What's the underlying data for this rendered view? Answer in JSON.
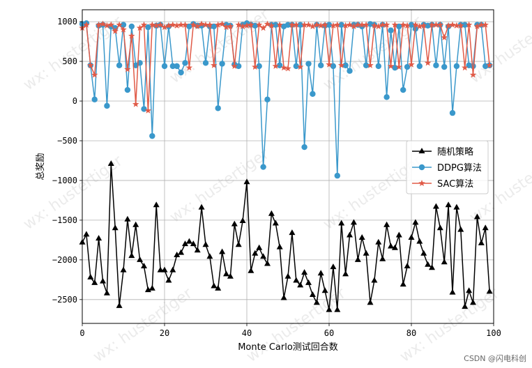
{
  "chart_data": {
    "type": "line",
    "title": "",
    "xlabel": "Monte Carlo测试回合数",
    "ylabel": "总奖励",
    "xlim": [
      0,
      100
    ],
    "ylim": [
      -2800,
      1150
    ],
    "xticks": [
      0,
      20,
      40,
      60,
      80,
      100
    ],
    "yticks": [
      1000,
      500,
      0,
      -500,
      -1000,
      -1500,
      -2000,
      -2500
    ],
    "grid": true,
    "legend_position": "center-right",
    "series": [
      {
        "name": "随机策略",
        "color": "#000000",
        "marker": "triangle",
        "x": [
          0,
          1,
          2,
          3,
          4,
          5,
          6,
          7,
          8,
          9,
          10,
          11,
          12,
          13,
          14,
          15,
          16,
          17,
          18,
          19,
          20,
          21,
          22,
          23,
          24,
          25,
          26,
          27,
          28,
          29,
          30,
          31,
          32,
          33,
          34,
          35,
          36,
          37,
          38,
          39,
          40,
          41,
          42,
          43,
          44,
          45,
          46,
          47,
          48,
          49,
          50,
          51,
          52,
          53,
          54,
          55,
          56,
          57,
          58,
          59,
          60,
          61,
          62,
          63,
          64,
          65,
          66,
          67,
          68,
          69,
          70,
          71,
          72,
          73,
          74,
          75,
          76,
          77,
          78,
          79,
          80,
          81,
          82,
          83,
          84,
          85,
          86,
          87,
          88,
          89,
          90,
          91,
          92,
          93,
          94,
          95,
          96,
          97,
          98,
          99
        ],
        "values": [
          -1780,
          -1680,
          -2220,
          -2290,
          -1730,
          -2270,
          -2420,
          -790,
          -1600,
          -2580,
          -2130,
          -1490,
          -1950,
          -1560,
          -2000,
          -2080,
          -2380,
          -2360,
          -1310,
          -2130,
          -2130,
          -2260,
          -2130,
          -1940,
          -1910,
          -1800,
          -1770,
          -1800,
          -1880,
          -1340,
          -1810,
          -1960,
          -2330,
          -2360,
          -1900,
          -2180,
          -2210,
          -1550,
          -1810,
          -1510,
          -1020,
          -2140,
          -1920,
          -1850,
          -1960,
          -2050,
          -1420,
          -1540,
          -1840,
          -2480,
          -2210,
          -1660,
          -2260,
          -2320,
          -2160,
          -2290,
          -2440,
          -2540,
          -2170,
          -2390,
          -2630,
          -2090,
          -2630,
          -1540,
          -2180,
          -1690,
          -1530,
          -2000,
          -1720,
          -1920,
          -2540,
          -2260,
          -1780,
          -1990,
          -1560,
          -1830,
          -1850,
          -1690,
          -2310,
          -2080,
          -1720,
          -1530,
          -1770,
          -1920,
          -2060,
          -2100,
          -1330,
          -1600,
          -2030,
          -1310,
          -2410,
          -1340,
          -1620,
          -2590,
          -2390,
          -2540,
          -1460,
          -1790,
          -1600,
          -2400
        ],
        "x_note": ""
      },
      {
        "name": "DDPG算法",
        "color": "#3a98cb",
        "marker": "circle",
        "x": [
          0,
          1,
          2,
          3,
          4,
          5,
          6,
          7,
          8,
          9,
          10,
          11,
          12,
          13,
          14,
          15,
          16,
          17,
          18,
          19,
          20,
          21,
          22,
          23,
          24,
          25,
          26,
          27,
          28,
          29,
          30,
          31,
          32,
          33,
          34,
          35,
          36,
          37,
          38,
          39,
          40,
          41,
          42,
          43,
          44,
          45,
          46,
          47,
          48,
          49,
          50,
          51,
          52,
          53,
          54,
          55,
          56,
          57,
          58,
          59,
          60,
          61,
          62,
          63,
          64,
          65,
          66,
          67,
          68,
          69,
          70,
          71,
          72,
          73,
          74,
          75,
          76,
          77,
          78,
          79,
          80,
          81,
          82,
          83,
          84,
          85,
          86,
          87,
          88,
          89,
          90,
          91,
          92,
          93,
          94,
          95,
          96,
          97,
          98,
          99
        ],
        "values": [
          970,
          980,
          450,
          20,
          950,
          960,
          -60,
          940,
          920,
          450,
          960,
          140,
          940,
          450,
          480,
          -100,
          930,
          -440,
          950,
          960,
          440,
          940,
          440,
          440,
          360,
          480,
          940,
          970,
          950,
          950,
          480,
          940,
          940,
          -90,
          470,
          960,
          950,
          460,
          440,
          960,
          980,
          960,
          950,
          440,
          -830,
          20,
          960,
          960,
          450,
          940,
          960,
          960,
          440,
          960,
          -580,
          470,
          90,
          960,
          450,
          950,
          960,
          440,
          -940,
          960,
          450,
          380,
          960,
          960,
          940,
          450,
          970,
          960,
          440,
          960,
          50,
          890,
          420,
          940,
          140,
          430,
          960,
          910,
          440,
          960,
          950,
          960,
          450,
          960,
          430,
          940,
          -150,
          440,
          960,
          960,
          450,
          440,
          960,
          960,
          440,
          450
        ],
        "x_note": ""
      },
      {
        "name": "SAC算法",
        "color": "#e05a47",
        "marker": "star",
        "x": [
          0,
          1,
          2,
          3,
          4,
          5,
          6,
          7,
          8,
          9,
          10,
          11,
          12,
          13,
          14,
          15,
          16,
          17,
          18,
          19,
          20,
          21,
          22,
          23,
          24,
          25,
          26,
          27,
          28,
          29,
          30,
          31,
          32,
          33,
          34,
          35,
          36,
          37,
          38,
          39,
          40,
          41,
          42,
          43,
          44,
          45,
          46,
          47,
          48,
          49,
          50,
          51,
          52,
          53,
          54,
          55,
          56,
          57,
          58,
          59,
          60,
          61,
          62,
          63,
          64,
          65,
          66,
          67,
          68,
          69,
          70,
          71,
          72,
          73,
          74,
          75,
          76,
          77,
          78,
          79,
          80,
          81,
          82,
          83,
          84,
          85,
          86,
          87,
          88,
          89,
          90,
          91,
          92,
          93,
          94,
          95,
          96,
          97,
          98,
          99
        ],
        "values": [
          920,
          960,
          450,
          330,
          960,
          970,
          950,
          960,
          880,
          960,
          900,
          400,
          820,
          -40,
          920,
          960,
          -120,
          960,
          950,
          960,
          930,
          950,
          960,
          950,
          960,
          960,
          420,
          960,
          940,
          970,
          960,
          960,
          450,
          960,
          970,
          930,
          940,
          440,
          960,
          940,
          950,
          960,
          430,
          960,
          920,
          970,
          950,
          440,
          960,
          420,
          410,
          960,
          960,
          430,
          960,
          960,
          940,
          960,
          950,
          960,
          460,
          950,
          960,
          450,
          950,
          960,
          940,
          960,
          960,
          960,
          450,
          950,
          940,
          960,
          960,
          440,
          960,
          430,
          960,
          950,
          460,
          960,
          940,
          950,
          480,
          960,
          960,
          960,
          800,
          950,
          960,
          950,
          950,
          420,
          960,
          330,
          940,
          960,
          960,
          450
        ]
      }
    ]
  },
  "watermark": "wx: hustertiger",
  "credit": "CSDN @闪电科创"
}
